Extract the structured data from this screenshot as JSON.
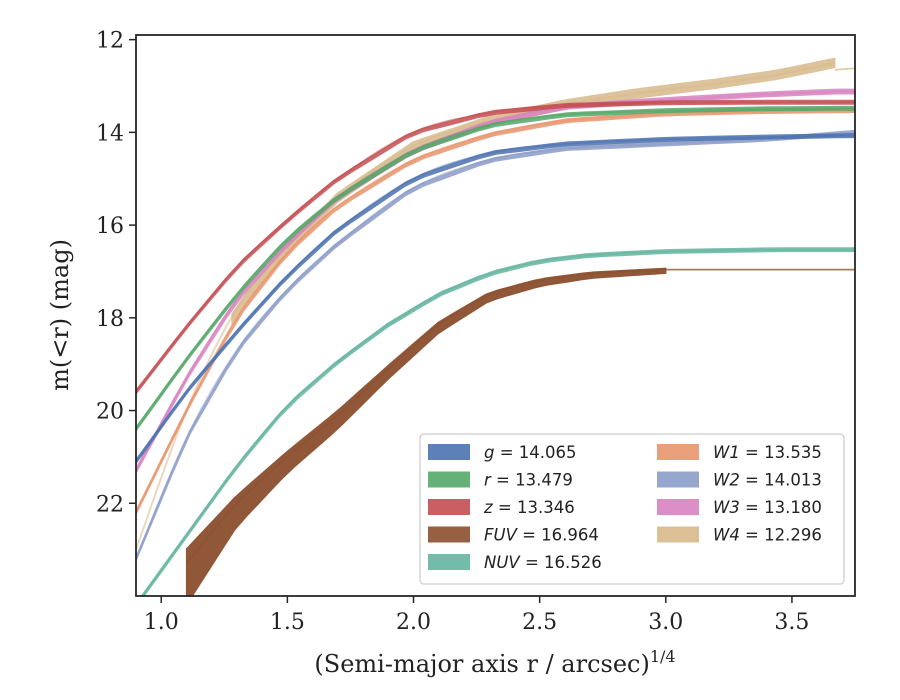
{
  "chart_data": {
    "type": "line",
    "xlabel": "(Semi-major axis r / arcsec)",
    "xlabel_sup": "1/4",
    "ylabel": "m(<r) (mag)",
    "xlim": [
      0.9,
      3.75
    ],
    "ylim": [
      24.0,
      11.9
    ],
    "y_inverted": true,
    "grid": false,
    "legend_position": "lower-right",
    "x_ticks": [
      "1.0",
      "1.5",
      "2.0",
      "2.5",
      "3.0",
      "3.5"
    ],
    "y_ticks": [
      "12",
      "14",
      "16",
      "18",
      "20",
      "22"
    ],
    "series": [
      {
        "name": "g",
        "label": "g = 14.065",
        "color": "#4c72b0",
        "x": [
          0.9,
          1.1,
          1.3,
          1.5,
          1.7,
          2.0,
          2.3,
          2.6,
          3.0,
          3.4,
          3.75
        ],
        "y": [
          21.1,
          19.6,
          18.3,
          17.1,
          16.1,
          15.0,
          14.45,
          14.25,
          14.15,
          14.1,
          14.07
        ],
        "band": 0.08
      },
      {
        "name": "r",
        "label": "r = 13.479",
        "color": "#55a868",
        "x": [
          0.9,
          1.1,
          1.3,
          1.5,
          1.7,
          2.0,
          2.3,
          2.6,
          3.0,
          3.4,
          3.75
        ],
        "y": [
          20.4,
          18.9,
          17.5,
          16.3,
          15.4,
          14.4,
          13.85,
          13.62,
          13.53,
          13.49,
          13.48
        ],
        "band": 0.08
      },
      {
        "name": "z",
        "label": "z = 13.346",
        "color": "#c44e52",
        "x": [
          0.9,
          1.1,
          1.3,
          1.5,
          1.7,
          2.0,
          2.3,
          2.6,
          3.0,
          3.4,
          3.75
        ],
        "y": [
          19.6,
          18.2,
          16.9,
          15.9,
          15.0,
          14.0,
          13.58,
          13.42,
          13.36,
          13.35,
          13.35
        ],
        "band": 0.08
      },
      {
        "name": "FUV",
        "label": "FUV = 16.964",
        "color": "#8c4f2f",
        "x": [
          1.1,
          1.3,
          1.5,
          1.7,
          1.9,
          2.1,
          2.3,
          2.5,
          2.7,
          3.0
        ],
        "y": [
          23.3,
          22.0,
          21.0,
          20.1,
          19.1,
          18.15,
          17.5,
          17.2,
          17.05,
          16.96
        ],
        "band_lo": [
          0.9,
          0.5,
          0.35,
          0.3,
          0.22,
          0.18,
          0.14,
          0.12,
          0.1,
          0.08
        ],
        "thin_x": [
          3.0,
          3.75
        ],
        "thin_y": [
          16.96,
          16.96
        ]
      },
      {
        "name": "NUV",
        "label": "NUV = 16.526",
        "color": "#64b5a0",
        "x": [
          0.9,
          1.1,
          1.3,
          1.5,
          1.7,
          1.9,
          2.1,
          2.3,
          2.5,
          2.7,
          3.0,
          3.45,
          3.75
        ],
        "y": [
          24.2,
          22.7,
          21.2,
          19.9,
          18.95,
          18.15,
          17.5,
          17.05,
          16.78,
          16.65,
          16.57,
          16.53,
          16.53
        ],
        "band": 0.08
      },
      {
        "name": "W1",
        "label": "W1 = 13.535",
        "color": "#e8956d",
        "x": [
          0.9,
          1.1,
          1.3,
          1.5,
          1.7,
          2.0,
          2.3,
          2.6,
          3.0,
          3.4,
          3.75
        ],
        "y": [
          22.2,
          20.0,
          18.0,
          16.6,
          15.6,
          14.6,
          14.05,
          13.75,
          13.6,
          13.55,
          13.53
        ],
        "band": 0.08
      },
      {
        "name": "W2",
        "label": "W2 = 14.013",
        "color": "#8c9cc8",
        "x": [
          0.9,
          1.1,
          1.3,
          1.5,
          1.7,
          2.0,
          2.3,
          2.6,
          3.0,
          3.4,
          3.75
        ],
        "y": [
          23.2,
          20.6,
          18.7,
          17.4,
          16.4,
          15.2,
          14.6,
          14.35,
          14.25,
          14.15,
          14.0
        ],
        "band": 0.08
      },
      {
        "name": "W3",
        "label": "W3 = 13.180",
        "color": "#d982c0",
        "x": [
          0.9,
          1.1,
          1.3,
          1.5,
          1.7,
          2.0,
          2.3,
          2.6,
          3.0,
          3.4,
          3.67,
          3.75
        ],
        "y": [
          21.3,
          19.3,
          17.6,
          16.4,
          15.4,
          14.4,
          13.8,
          13.45,
          13.3,
          13.18,
          13.12,
          13.12
        ],
        "band": 0.1
      },
      {
        "name": "W4",
        "label": "W4 = 12.296",
        "color": "#d8b98a",
        "x": [
          0.9,
          1.1,
          1.3,
          1.5,
          1.7,
          2.0,
          2.3,
          2.6,
          2.9,
          3.2,
          3.45,
          3.67
        ],
        "y": [
          23.0,
          20.0,
          17.8,
          16.5,
          15.4,
          14.3,
          13.75,
          13.4,
          13.15,
          12.95,
          12.75,
          12.5
        ],
        "band_from_x": 1.28,
        "band": 0.2,
        "thin_x": [
          3.67,
          3.75
        ],
        "thin_y": [
          12.65,
          12.62
        ]
      }
    ],
    "legend": [
      [
        "g = 14.065",
        "r = 13.479",
        "z = 13.346",
        "FUV = 16.964",
        "NUV = 16.526"
      ],
      [
        "W1 = 13.535",
        "W2 = 14.013",
        "W3 = 13.180",
        "W4 = 12.296"
      ]
    ]
  }
}
